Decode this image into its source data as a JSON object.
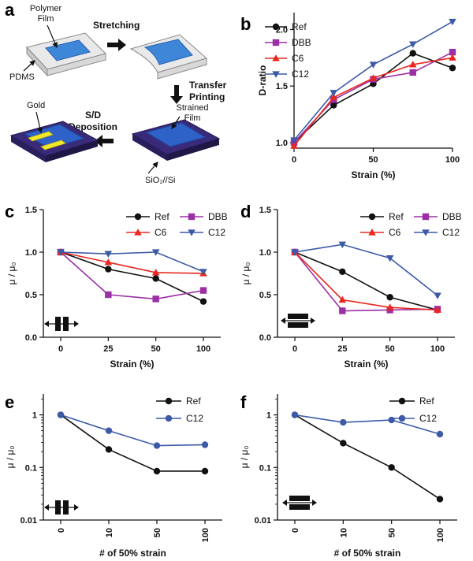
{
  "schematic": {
    "panel_label": "a",
    "polymer_film": "Polymer\nFilm",
    "pdms": "PDMS",
    "stretching": "Stretching",
    "transfer_printing": "Transfer\nPrinting",
    "sd_deposition": "S/D\nDeposition",
    "gold": "Gold",
    "strained_film": "Strained\nFilm",
    "substrate": "SiO₂//Si"
  },
  "colors": {
    "Ref": "#111111",
    "DBB": "#9b2fa6",
    "C6": "#e8281f",
    "C12": "#3c5aa8",
    "film_blue": "#3e86d8",
    "pdms": "#e6e6e6",
    "substrate": "#3a2b7a",
    "gold": "#f2ea2a"
  },
  "chart_data": [
    {
      "panel": "b",
      "type": "line",
      "xlabel": "Strain (%)",
      "ylabel": "D-ratio",
      "x_ticks": [
        "0",
        "50",
        "100"
      ],
      "y_ticks": [
        "1.0",
        "1.5",
        "2.0"
      ],
      "xlim": [
        0,
        100
      ],
      "ylim": [
        0.95,
        2.15
      ],
      "legend_position": "top-left",
      "x": [
        0,
        25,
        50,
        75,
        100
      ],
      "series": [
        {
          "name": "Ref",
          "marker": "circle",
          "values": [
            1.0,
            1.33,
            1.52,
            1.79,
            1.66
          ]
        },
        {
          "name": "DBB",
          "marker": "square",
          "values": [
            1.0,
            1.38,
            1.56,
            1.62,
            1.8
          ]
        },
        {
          "name": "C6",
          "marker": "triangle-up",
          "values": [
            0.97,
            1.4,
            1.57,
            1.69,
            1.75
          ]
        },
        {
          "name": "C12",
          "marker": "triangle-down",
          "values": [
            1.02,
            1.44,
            1.69,
            1.87,
            2.07
          ]
        }
      ]
    },
    {
      "panel": "c",
      "type": "line",
      "xlabel": "Strain (%)",
      "ylabel": "μ / μ₀",
      "x_ticks": [
        "0",
        "25",
        "50",
        "100"
      ],
      "y_ticks": [
        "0.0",
        "0.5",
        "1.0",
        "1.5"
      ],
      "ylim": [
        0,
        1.5
      ],
      "legend_position": "top-right",
      "stretch_direction_icon": "parallel",
      "x": [
        0,
        25,
        50,
        100
      ],
      "series": [
        {
          "name": "Ref",
          "marker": "circle",
          "values": [
            1.0,
            0.8,
            0.69,
            0.42
          ]
        },
        {
          "name": "DBB",
          "marker": "square",
          "values": [
            1.0,
            0.5,
            0.45,
            0.55
          ]
        },
        {
          "name": "C6",
          "marker": "triangle-up",
          "values": [
            1.0,
            0.88,
            0.76,
            0.75
          ]
        },
        {
          "name": "C12",
          "marker": "triangle-down",
          "values": [
            1.0,
            0.98,
            1.0,
            0.77
          ]
        }
      ]
    },
    {
      "panel": "d",
      "type": "line",
      "xlabel": "Strain (%)",
      "ylabel": "μ / μ₀",
      "x_ticks": [
        "0",
        "25",
        "50",
        "100"
      ],
      "y_ticks": [
        "0.0",
        "0.5",
        "1.0",
        "1.5"
      ],
      "ylim": [
        0,
        1.5
      ],
      "legend_position": "top-right",
      "stretch_direction_icon": "perpendicular",
      "x": [
        0,
        25,
        50,
        100
      ],
      "series": [
        {
          "name": "Ref",
          "marker": "circle",
          "values": [
            1.0,
            0.77,
            0.47,
            0.32
          ]
        },
        {
          "name": "DBB",
          "marker": "square",
          "values": [
            1.0,
            0.31,
            0.32,
            0.33
          ]
        },
        {
          "name": "C6",
          "marker": "triangle-up",
          "values": [
            1.0,
            0.44,
            0.35,
            0.32
          ]
        },
        {
          "name": "C12",
          "marker": "triangle-down",
          "values": [
            1.0,
            1.09,
            0.93,
            0.49
          ]
        }
      ]
    },
    {
      "panel": "e",
      "type": "line",
      "xlabel": "# of 50% strain",
      "ylabel": "μ / μ₀",
      "y_scale": "log",
      "x_ticks": [
        "0",
        "10",
        "50",
        "100"
      ],
      "y_ticks": [
        "0.01",
        "0.1",
        "1"
      ],
      "ylim": [
        0.01,
        2.5
      ],
      "legend_position": "top-right",
      "stretch_direction_icon": "parallel",
      "x": [
        0,
        10,
        50,
        100
      ],
      "series": [
        {
          "name": "Ref",
          "marker": "circle",
          "values": [
            1.0,
            0.22,
            0.085,
            0.085
          ]
        },
        {
          "name": "C12",
          "marker": "circle",
          "values": [
            1.0,
            0.5,
            0.26,
            0.27
          ]
        }
      ]
    },
    {
      "panel": "f",
      "type": "line",
      "xlabel": "# of 50% strain",
      "ylabel": "μ / μ₀",
      "y_scale": "log",
      "x_ticks": [
        "0",
        "10",
        "50",
        "100"
      ],
      "y_ticks": [
        "0.01",
        "0.1",
        "1"
      ],
      "ylim": [
        0.01,
        2.5
      ],
      "legend_position": "top-right",
      "stretch_direction_icon": "perpendicular",
      "x": [
        0,
        10,
        50,
        100
      ],
      "series": [
        {
          "name": "Ref",
          "marker": "circle",
          "values": [
            1.0,
            0.29,
            0.1,
            0.025
          ]
        },
        {
          "name": "C12",
          "marker": "circle",
          "values": [
            1.0,
            0.72,
            0.8,
            0.43
          ]
        }
      ]
    }
  ]
}
